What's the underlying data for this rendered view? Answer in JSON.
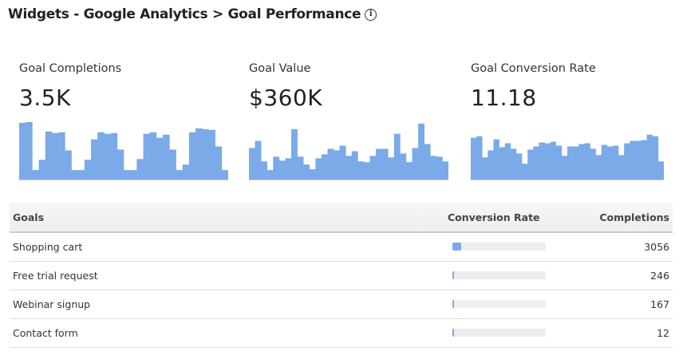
{
  "header": {
    "title": "Widgets - Google Analytics > Goal Performance",
    "info_icon": "info-icon"
  },
  "metrics": [
    {
      "label": "Goal Completions",
      "value": "3.5K",
      "sparkline": [
        72,
        73,
        12,
        25,
        61,
        59,
        60,
        37,
        12,
        12,
        25,
        51,
        60,
        58,
        59,
        38,
        12,
        12,
        26,
        58,
        60,
        53,
        57,
        38,
        12,
        19,
        60,
        65,
        64,
        63,
        42,
        12
      ]
    },
    {
      "label": "Goal Value",
      "value": "$360K",
      "sparkline": [
        40,
        49,
        23,
        12,
        29,
        24,
        27,
        64,
        29,
        19,
        13,
        27,
        32,
        39,
        37,
        43,
        30,
        36,
        23,
        22,
        30,
        39,
        39,
        28,
        58,
        33,
        22,
        40,
        71,
        45,
        30,
        29,
        23
      ]
    },
    {
      "label": "Goal Conversion Rate",
      "value": "11.18",
      "sparkline": [
        53,
        55,
        28,
        37,
        51,
        41,
        46,
        39,
        33,
        20,
        38,
        42,
        47,
        46,
        48,
        43,
        30,
        42,
        42,
        45,
        46,
        39,
        31,
        44,
        42,
        43,
        31,
        46,
        49,
        49,
        50,
        57,
        55,
        23
      ]
    }
  ],
  "table": {
    "headers": {
      "goals": "Goals",
      "conversion_rate": "Conversion Rate",
      "completions": "Completions"
    },
    "rows": [
      {
        "goal": "Shopping cart",
        "rate_fraction": 0.09,
        "completions": "3056"
      },
      {
        "goal": "Free trial request",
        "rate_fraction": 0.01,
        "completions": "246"
      },
      {
        "goal": "Webinar signup",
        "rate_fraction": 0.01,
        "completions": "167"
      },
      {
        "goal": "Contact form",
        "rate_fraction": 0.01,
        "completions": "12"
      }
    ]
  },
  "colors": {
    "accent": "#7aaae8",
    "track": "#eeeeee"
  }
}
